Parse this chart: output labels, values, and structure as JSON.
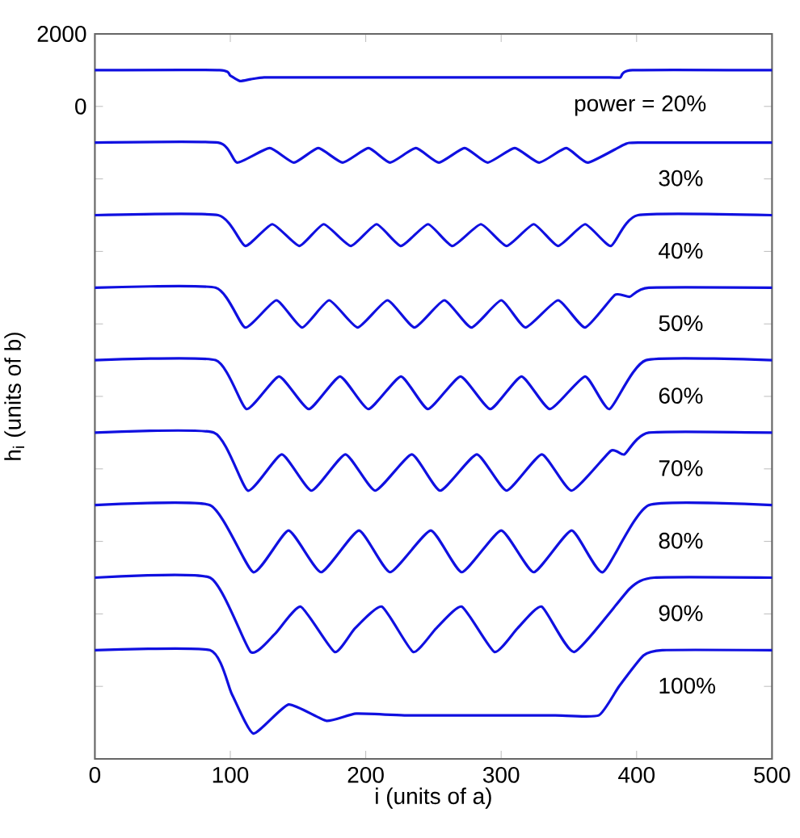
{
  "chart_data": {
    "type": "line",
    "xlabel": "i (units of a)",
    "ylabel": "h$_{i}$ (units of b)",
    "xlim": [
      0,
      500
    ],
    "xticks": [
      0,
      100,
      200,
      300,
      400,
      500
    ],
    "ylim": [
      -18000,
      2000
    ],
    "yticks": [
      2000,
      0,
      {
        "value": -2000,
        "label": null
      },
      {
        "value": -4000,
        "label": null
      },
      {
        "value": -6000,
        "label": null
      },
      {
        "value": -8000,
        "label": null
      },
      {
        "value": -10000,
        "label": null
      },
      {
        "value": -12000,
        "label": null
      },
      {
        "value": -14000,
        "label": null
      },
      {
        "value": -16000,
        "label": null
      }
    ],
    "series": [
      {
        "color": "#1010e0",
        "x": [
          0,
          92,
          100,
          107,
          115,
          125,
          150,
          170,
          200,
          230,
          260,
          300,
          340,
          380,
          388,
          397,
          500
        ],
        "values": [
          1000,
          1000,
          850,
          700,
          750,
          800,
          800,
          800,
          800,
          800,
          800,
          800,
          800,
          800,
          800,
          1000,
          1000
        ]
      },
      {
        "color": "#1010e0",
        "x": [
          0,
          91,
          105,
          129,
          147,
          165,
          183,
          202,
          218,
          237,
          254,
          273,
          290,
          310,
          328,
          348,
          364,
          391,
          401,
          500
        ],
        "values": [
          -1000,
          -1000,
          -1550,
          -1150,
          -1550,
          -1150,
          -1550,
          -1150,
          -1550,
          -1150,
          -1550,
          -1150,
          -1550,
          -1150,
          -1550,
          -1150,
          -1550,
          -1050,
          -1000,
          -1000
        ]
      },
      {
        "color": "#1010e0",
        "x": [
          0,
          91,
          111,
          131,
          151,
          169,
          189,
          208,
          226,
          246,
          264,
          285,
          304,
          324,
          342,
          362,
          381,
          401,
          500
        ],
        "values": [
          -3000,
          -3000,
          -3850,
          -3250,
          -3850,
          -3250,
          -3850,
          -3250,
          -3850,
          -3250,
          -3850,
          -3250,
          -3850,
          -3250,
          -3850,
          -3250,
          -3850,
          -3000,
          -3000
        ]
      },
      {
        "color": "#1010e0",
        "x": [
          0,
          89,
          111,
          134,
          153,
          173,
          194,
          216,
          236,
          258,
          278,
          300,
          318,
          342,
          362,
          384,
          395,
          409,
          500
        ],
        "values": [
          -5000,
          -5000,
          -6100,
          -5350,
          -6100,
          -5350,
          -6100,
          -5350,
          -6100,
          -5350,
          -6100,
          -5350,
          -6100,
          -5350,
          -6100,
          -5200,
          -5250,
          -5000,
          -5000
        ]
      },
      {
        "color": "#1010e0",
        "x": [
          0,
          89,
          112,
          136,
          158,
          181,
          202,
          226,
          246,
          270,
          292,
          315,
          336,
          362,
          380,
          407,
          500
        ],
        "values": [
          -7000,
          -7000,
          -8350,
          -7450,
          -8350,
          -7450,
          -8350,
          -7450,
          -8350,
          -7450,
          -8350,
          -7450,
          -8350,
          -7450,
          -8350,
          -7000,
          -7000
        ]
      },
      {
        "color": "#1010e0",
        "x": [
          0,
          88,
          113,
          138,
          160,
          185,
          207,
          234,
          255,
          282,
          304,
          330,
          352,
          381,
          391,
          409,
          500
        ],
        "values": [
          -9000,
          -9000,
          -10600,
          -9600,
          -10600,
          -9600,
          -10600,
          -9600,
          -10600,
          -9600,
          -10600,
          -9600,
          -10600,
          -9500,
          -9600,
          -9000,
          -9000
        ]
      },
      {
        "color": "#1010e0",
        "x": [
          0,
          85,
          117,
          143,
          167,
          195,
          218,
          248,
          271,
          300,
          324,
          352,
          375,
          409,
          500
        ],
        "values": [
          -11000,
          -11000,
          -12850,
          -11700,
          -12850,
          -11700,
          -12850,
          -11700,
          -12850,
          -11700,
          -12850,
          -11700,
          -12850,
          -11000,
          -11000
        ]
      },
      {
        "color": "#1010e0",
        "x": [
          0,
          85,
          115,
          133,
          152,
          177,
          192,
          212,
          235,
          252,
          271,
          295,
          312,
          330,
          354,
          395,
          413,
          500
        ],
        "values": [
          -13000,
          -13000,
          -15050,
          -14550,
          -13800,
          -15050,
          -14400,
          -13800,
          -15050,
          -14400,
          -13800,
          -15050,
          -14400,
          -13800,
          -15050,
          -13300,
          -13000,
          -13000
        ]
      },
      {
        "color": "#1010e0",
        "x": [
          0,
          85,
          101,
          117,
          143,
          171,
          193,
          230,
          260,
          300,
          340,
          372,
          387,
          405,
          419,
          500
        ],
        "values": [
          -15000,
          -15000,
          -16200,
          -17300,
          -16500,
          -16950,
          -16750,
          -16800,
          -16800,
          -16800,
          -16800,
          -16800,
          -16000,
          -15150,
          -15000,
          -15000
        ]
      }
    ],
    "annotations": [
      "power = 20%",
      "30%",
      "40%",
      "50%",
      "60%",
      "70%",
      "80%",
      "90%",
      "100%"
    ]
  }
}
